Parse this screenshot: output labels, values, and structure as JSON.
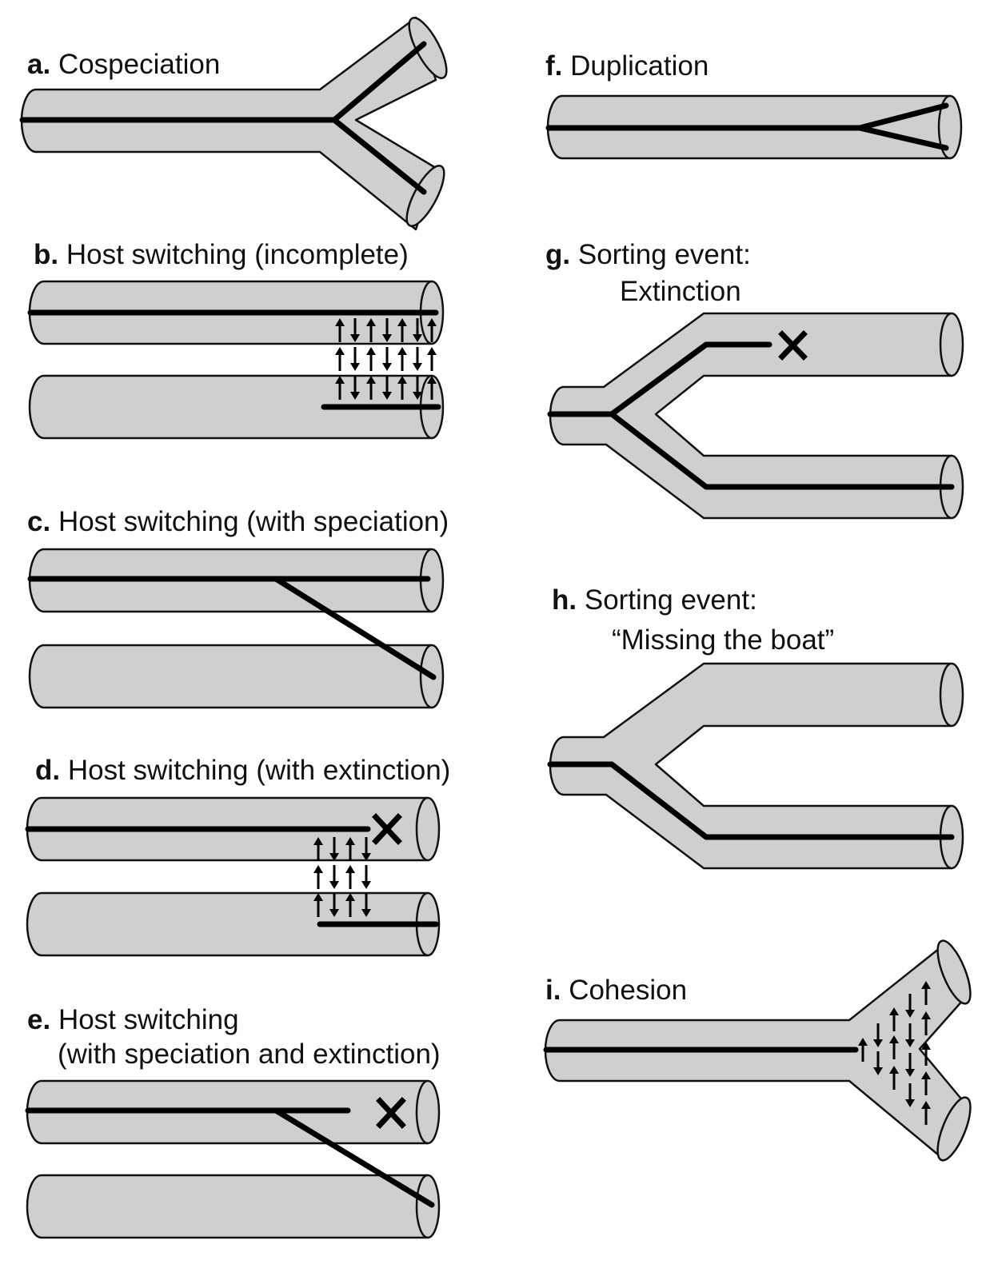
{
  "panels": [
    {
      "id": "a",
      "letter": "a.",
      "title": "Cospeciation"
    },
    {
      "id": "b",
      "letter": "b.",
      "title": "Host switching (incomplete)"
    },
    {
      "id": "c",
      "letter": "c.",
      "title": "Host switching (with speciation)"
    },
    {
      "id": "d",
      "letter": "d.",
      "title": "Host switching (with extinction)"
    },
    {
      "id": "e",
      "letter": "e.",
      "title": "Host switching",
      "title_line2": "(with speciation and extinction)"
    },
    {
      "id": "f",
      "letter": "f.",
      "title": "Duplication"
    },
    {
      "id": "g",
      "letter": "g.",
      "title": "Sorting event:",
      "title_line2": "Extinction"
    },
    {
      "id": "h",
      "letter": "h.",
      "title": "Sorting event:",
      "title_line2": "“Missing the boat”"
    },
    {
      "id": "i",
      "letter": "i.",
      "title": "Cohesion"
    }
  ],
  "colors": {
    "tube_fill": "#cfcfcf",
    "outline": "#111111",
    "lineage": "#000000",
    "background": "#ffffff"
  }
}
